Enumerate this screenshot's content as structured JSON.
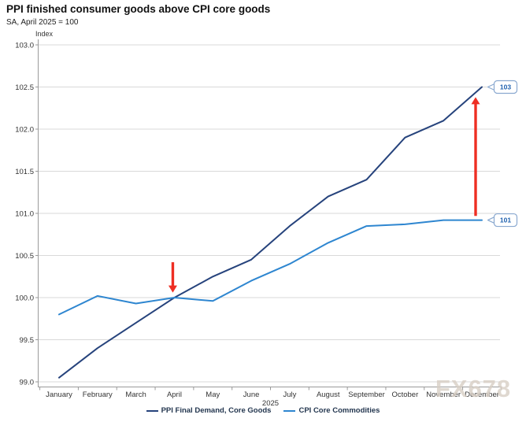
{
  "header": {
    "title": "PPI finished consumer goods above CPI core goods",
    "subtitle": "SA, April 2025 = 100"
  },
  "chart_data": {
    "type": "line",
    "title": "PPI finished consumer goods above CPI core goods",
    "subtitle": "SA, April 2025 = 100",
    "y_axis_label": "Index",
    "x_axis_year": "2025",
    "ylim": [
      99.0,
      103.0
    ],
    "y_tick_step": 0.5,
    "grid": true,
    "legend_position": "bottom",
    "categories": [
      "January",
      "February",
      "March",
      "April",
      "May",
      "June",
      "July",
      "August",
      "September",
      "October",
      "November",
      "December"
    ],
    "series": [
      {
        "name": "PPI Final Demand, Core Goods",
        "color": "#26437c",
        "values": [
          99.05,
          99.4,
          99.7,
          100.0,
          100.25,
          100.45,
          100.85,
          101.2,
          101.4,
          101.9,
          102.1,
          102.5
        ]
      },
      {
        "name": "CPI Core Commodities",
        "color": "#2e86d0",
        "values": [
          99.8,
          100.02,
          99.93,
          100.0,
          99.96,
          100.2,
          100.4,
          100.65,
          100.85,
          100.87,
          100.92,
          100.92
        ]
      }
    ],
    "annotations": {
      "arrow_color": "#ee2e23",
      "arrows": [
        {
          "direction": "down",
          "month": "April",
          "from_value": 100.42,
          "to_value": 100.06
        },
        {
          "direction": "up",
          "month": "December",
          "from_value": 100.97,
          "to_value": 102.38
        }
      ],
      "callouts": [
        {
          "label": "103",
          "month": "December",
          "series": 0
        },
        {
          "label": "101",
          "month": "December",
          "series": 1
        }
      ]
    }
  },
  "watermark": {
    "text": "FX678",
    "color": "#d8cfc5"
  },
  "colors": {
    "gridline": "#d9d9d9",
    "axis": "#9a9a9a",
    "tick_label": "#333333",
    "callout_border": "#8aa9d0",
    "callout_text": "#1d5fae",
    "callout_fill": "#ffffff"
  }
}
